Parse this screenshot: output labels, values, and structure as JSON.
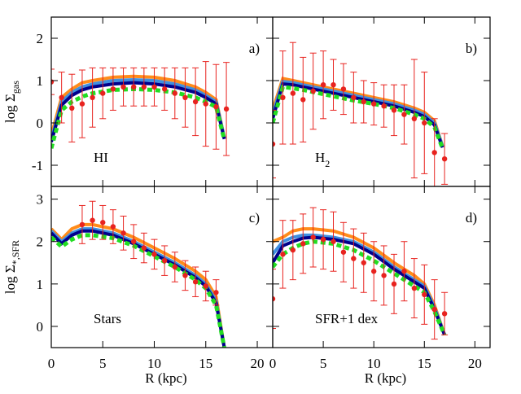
{
  "chart_data": [
    {
      "type": "line",
      "panel_label": "a)",
      "annotation": "HI",
      "annotation_sub": null,
      "ylabel": "log Σ",
      "ylabel_sub": "gas",
      "xlim": [
        0,
        21.5
      ],
      "xticks": [
        0,
        5,
        10,
        15,
        20
      ],
      "xtick_labels": false,
      "ylim": [
        -1.5,
        2.5
      ],
      "yticks": [
        -1,
        0,
        1,
        2
      ],
      "ytick_labels": true,
      "x": [
        0,
        1,
        2,
        3,
        4,
        6,
        8,
        10,
        12,
        14,
        15,
        16,
        16.8
      ],
      "series": [
        {
          "color": "#ff8c1a",
          "dash": false,
          "values": [
            -0.3,
            0.6,
            0.8,
            0.95,
            1.0,
            1.08,
            1.1,
            1.08,
            1.0,
            0.85,
            0.72,
            0.55,
            -0.35
          ]
        },
        {
          "color": "#3f8fe0",
          "dash": false,
          "values": [
            -0.4,
            0.5,
            0.72,
            0.85,
            0.92,
            1.0,
            1.02,
            1.0,
            0.92,
            0.78,
            0.65,
            0.5,
            -0.35
          ]
        },
        {
          "color": "#00008b",
          "dash": false,
          "values": [
            -0.45,
            0.42,
            0.65,
            0.78,
            0.85,
            0.92,
            0.95,
            0.92,
            0.85,
            0.72,
            0.6,
            0.45,
            -0.38
          ]
        },
        {
          "color": "#22dd22",
          "dash": true,
          "values": [
            -0.6,
            0.3,
            0.5,
            0.62,
            0.7,
            0.78,
            0.8,
            0.78,
            0.72,
            0.6,
            0.5,
            0.38,
            -0.4
          ]
        }
      ],
      "points": {
        "color": "#e8231f",
        "x": [
          0,
          1,
          2,
          3,
          4,
          5,
          6,
          7,
          8,
          9,
          10,
          11,
          12,
          13,
          14,
          15,
          16,
          17
        ],
        "values": [
          0.97,
          0.6,
          0.35,
          0.45,
          0.6,
          0.7,
          0.8,
          0.85,
          0.85,
          0.85,
          0.85,
          0.8,
          0.7,
          0.6,
          0.5,
          0.45,
          0.38,
          0.33
        ],
        "errors": [
          0.3,
          0.6,
          0.8,
          0.8,
          0.7,
          0.6,
          0.5,
          0.45,
          0.45,
          0.45,
          0.45,
          0.5,
          0.6,
          0.7,
          0.8,
          1.0,
          1.0,
          1.1
        ]
      }
    },
    {
      "type": "line",
      "panel_label": "b)",
      "annotation": "H",
      "annotation_sub": "2",
      "xlim": [
        0,
        21.5
      ],
      "xticks": [
        0,
        5,
        10,
        15,
        20
      ],
      "xtick_labels": false,
      "ylim": [
        -1.5,
        2.5
      ],
      "yticks": [
        -1,
        0,
        1,
        2
      ],
      "ytick_labels": false,
      "x": [
        0,
        1,
        2,
        3,
        4,
        6,
        8,
        10,
        12,
        14,
        15,
        16,
        16.8
      ],
      "series": [
        {
          "color": "#ff8c1a",
          "dash": false,
          "values": [
            0.3,
            1.05,
            1.0,
            0.95,
            0.9,
            0.8,
            0.7,
            0.6,
            0.5,
            0.35,
            0.25,
            0.05,
            -0.55
          ]
        },
        {
          "color": "#3f8fe0",
          "dash": false,
          "values": [
            0.2,
            0.98,
            0.95,
            0.9,
            0.85,
            0.75,
            0.65,
            0.55,
            0.45,
            0.3,
            0.2,
            0.0,
            -0.55
          ]
        },
        {
          "color": "#00008b",
          "dash": false,
          "values": [
            0.1,
            0.92,
            0.9,
            0.85,
            0.8,
            0.7,
            0.6,
            0.5,
            0.4,
            0.25,
            0.15,
            -0.05,
            -0.58
          ]
        },
        {
          "color": "#22dd22",
          "dash": true,
          "values": [
            0.0,
            0.85,
            0.82,
            0.78,
            0.73,
            0.63,
            0.53,
            0.45,
            0.35,
            0.2,
            0.1,
            -0.1,
            -0.6
          ]
        }
      ],
      "points": {
        "color": "#e8231f",
        "x": [
          0,
          1,
          2,
          3,
          4,
          5,
          6,
          7,
          8,
          9,
          10,
          11,
          12,
          13,
          14,
          15,
          16,
          17
        ],
        "values": [
          -0.5,
          0.6,
          0.7,
          0.55,
          0.75,
          0.9,
          0.9,
          0.8,
          0.6,
          0.5,
          0.45,
          0.4,
          0.3,
          0.2,
          0.1,
          0.0,
          -0.7,
          -0.85
        ],
        "errors": [
          0.8,
          1.1,
          1.2,
          1.0,
          0.9,
          0.8,
          0.6,
          0.6,
          0.6,
          0.5,
          0.5,
          0.5,
          0.6,
          0.7,
          1.4,
          1.2,
          0.8,
          0.6
        ]
      }
    },
    {
      "type": "line",
      "panel_label": "c)",
      "annotation": "Stars",
      "annotation_sub": null,
      "ylabel": "log Σ",
      "ylabel_sub": "*,SFR",
      "xlabel": "R (kpc)",
      "xlim": [
        0,
        21.5
      ],
      "xticks": [
        0,
        5,
        10,
        15,
        20
      ],
      "xtick_labels": true,
      "ylim": [
        -0.5,
        3.3
      ],
      "yticks": [
        0,
        1,
        2,
        3
      ],
      "ytick_labels": true,
      "x": [
        0,
        1,
        2,
        3,
        4,
        6,
        8,
        10,
        12,
        14,
        15,
        16,
        16.8
      ],
      "series": [
        {
          "color": "#ff8c1a",
          "dash": false,
          "values": [
            2.3,
            2.05,
            2.3,
            2.4,
            2.4,
            2.3,
            2.1,
            1.85,
            1.6,
            1.3,
            1.1,
            0.7,
            -0.5
          ]
        },
        {
          "color": "#3f8fe0",
          "dash": false,
          "values": [
            2.25,
            2.0,
            2.2,
            2.3,
            2.3,
            2.2,
            2.0,
            1.75,
            1.5,
            1.2,
            1.0,
            0.6,
            -0.5
          ]
        },
        {
          "color": "#00008b",
          "dash": false,
          "values": [
            2.2,
            1.95,
            2.15,
            2.25,
            2.25,
            2.15,
            1.95,
            1.7,
            1.45,
            1.15,
            0.95,
            0.55,
            -0.5
          ]
        },
        {
          "color": "#22dd22",
          "dash": true,
          "values": [
            2.1,
            1.88,
            2.05,
            2.15,
            2.15,
            2.08,
            1.9,
            1.65,
            1.4,
            1.1,
            0.9,
            0.5,
            -0.5
          ]
        }
      ],
      "points": {
        "color": "#e8231f",
        "x": [
          3,
          4,
          5,
          6,
          7,
          8,
          9,
          10,
          11,
          12,
          13,
          14,
          15,
          16
        ],
        "values": [
          2.4,
          2.5,
          2.45,
          2.35,
          2.2,
          2.0,
          1.85,
          1.7,
          1.55,
          1.4,
          1.2,
          1.05,
          0.95,
          0.8
        ],
        "errors": [
          0.45,
          0.45,
          0.4,
          0.4,
          0.4,
          0.4,
          0.35,
          0.35,
          0.35,
          0.35,
          0.35,
          0.35,
          0.35,
          0.3
        ]
      }
    },
    {
      "type": "line",
      "panel_label": "d)",
      "annotation": "SFR+1 dex",
      "annotation_sub": null,
      "xlabel": "R (kpc)",
      "xlim": [
        0,
        21.5
      ],
      "xticks": [
        0,
        5,
        10,
        15,
        20
      ],
      "xtick_labels": true,
      "ylim": [
        -0.5,
        3.3
      ],
      "yticks": [
        0,
        1,
        2,
        3
      ],
      "ytick_labels": false,
      "x": [
        0,
        1,
        2,
        3,
        4,
        6,
        8,
        10,
        12,
        14,
        15,
        16,
        17
      ],
      "series": [
        {
          "color": "#ff8c1a",
          "dash": false,
          "values": [
            2.0,
            2.1,
            2.25,
            2.3,
            2.3,
            2.25,
            2.1,
            1.85,
            1.5,
            1.2,
            1.0,
            0.5,
            -0.2
          ]
        },
        {
          "color": "#3f8fe0",
          "dash": false,
          "values": [
            1.7,
            2.0,
            2.1,
            2.15,
            2.15,
            2.1,
            2.0,
            1.75,
            1.4,
            1.1,
            0.95,
            0.45,
            -0.2
          ]
        },
        {
          "color": "#00008b",
          "dash": false,
          "values": [
            1.5,
            1.9,
            2.0,
            2.08,
            2.1,
            2.05,
            1.95,
            1.7,
            1.35,
            1.05,
            0.9,
            0.4,
            -0.2
          ]
        },
        {
          "color": "#22dd22",
          "dash": true,
          "values": [
            1.4,
            1.7,
            1.85,
            1.95,
            2.0,
            1.95,
            1.8,
            1.55,
            1.25,
            0.95,
            0.8,
            0.35,
            -0.2
          ]
        }
      ],
      "points": {
        "color": "#e8231f",
        "x": [
          0,
          1,
          2,
          3,
          4,
          5,
          6,
          7,
          8,
          9,
          10,
          11,
          12,
          13,
          14,
          15,
          16,
          17
        ],
        "values": [
          0.65,
          1.7,
          1.8,
          1.95,
          2.1,
          2.05,
          2.0,
          1.75,
          1.6,
          1.5,
          1.3,
          1.2,
          1.0,
          1.3,
          0.9,
          0.75,
          0.4,
          0.3
        ],
        "errors": [
          0.7,
          0.8,
          0.7,
          0.7,
          0.7,
          0.7,
          0.7,
          0.7,
          0.7,
          0.7,
          0.7,
          0.7,
          0.7,
          0.7,
          0.7,
          0.7,
          0.7,
          0.5
        ]
      }
    }
  ]
}
